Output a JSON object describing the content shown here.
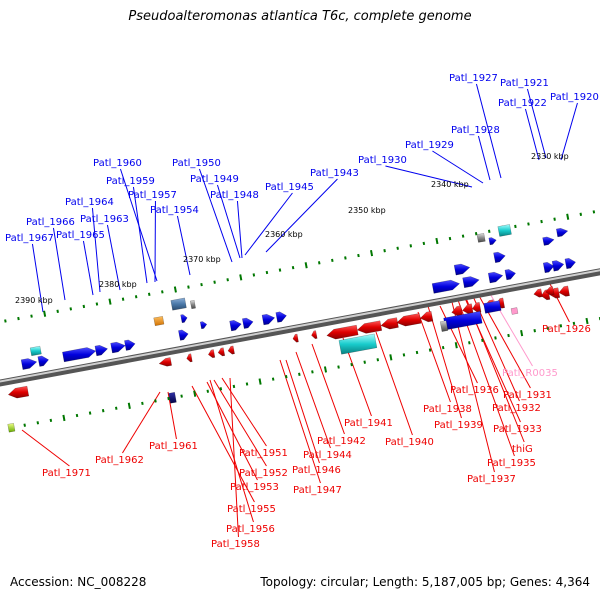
{
  "title": "Pseudoalteromonas atlantica T6c, complete genome",
  "footer": {
    "accession": "Accession: NC_008228",
    "summary": "Topology: circular; Length: 5,187,005 bp; Genes: 4,364"
  },
  "colors": {
    "forward": "#0000ee",
    "reverse": "#ee0000",
    "rna": "#ff99cc",
    "backbone": "#888888",
    "tick": "#007700"
  },
  "scale_labels": [
    "2330 kbp",
    "2340 kbp",
    "2350 kbp",
    "2360 kbp",
    "2370 kbp",
    "2380 kbp",
    "2390 kbp"
  ],
  "top_labels": [
    "Patl_1921",
    "Patl_1927",
    "Patl_1922",
    "Patl_1920",
    "Patl_1928",
    "Patl_1929",
    "Patl_1930",
    "Patl_1960",
    "Patl_1950",
    "Patl_1959",
    "Patl_1949",
    "Patl_1943",
    "Patl_1945",
    "Patl_1948",
    "Patl_1957",
    "Patl_1964",
    "Patl_1954",
    "Patl_1966",
    "Patl_1963",
    "Patl_1967",
    "Patl_1965"
  ],
  "bottom_labels": [
    "Patl_1926",
    "Patl_R0035",
    "Patl_1931",
    "Patl_1936",
    "Patl_1932",
    "Patl_1938",
    "Patl_1933",
    "Patl_1941",
    "Patl_1939",
    "Patl_1942",
    "Patl_1940",
    "thiG",
    "Patl_1935",
    "Patl_1944",
    "Patl_1961",
    "Patl_1962",
    "Patl_1951",
    "Patl_1946",
    "Patl_1971",
    "Patl_1937",
    "Patl_1952",
    "Patl_1947",
    "Patl_1953",
    "Patl_1955",
    "Patl_1956",
    "Patl_1958"
  ]
}
